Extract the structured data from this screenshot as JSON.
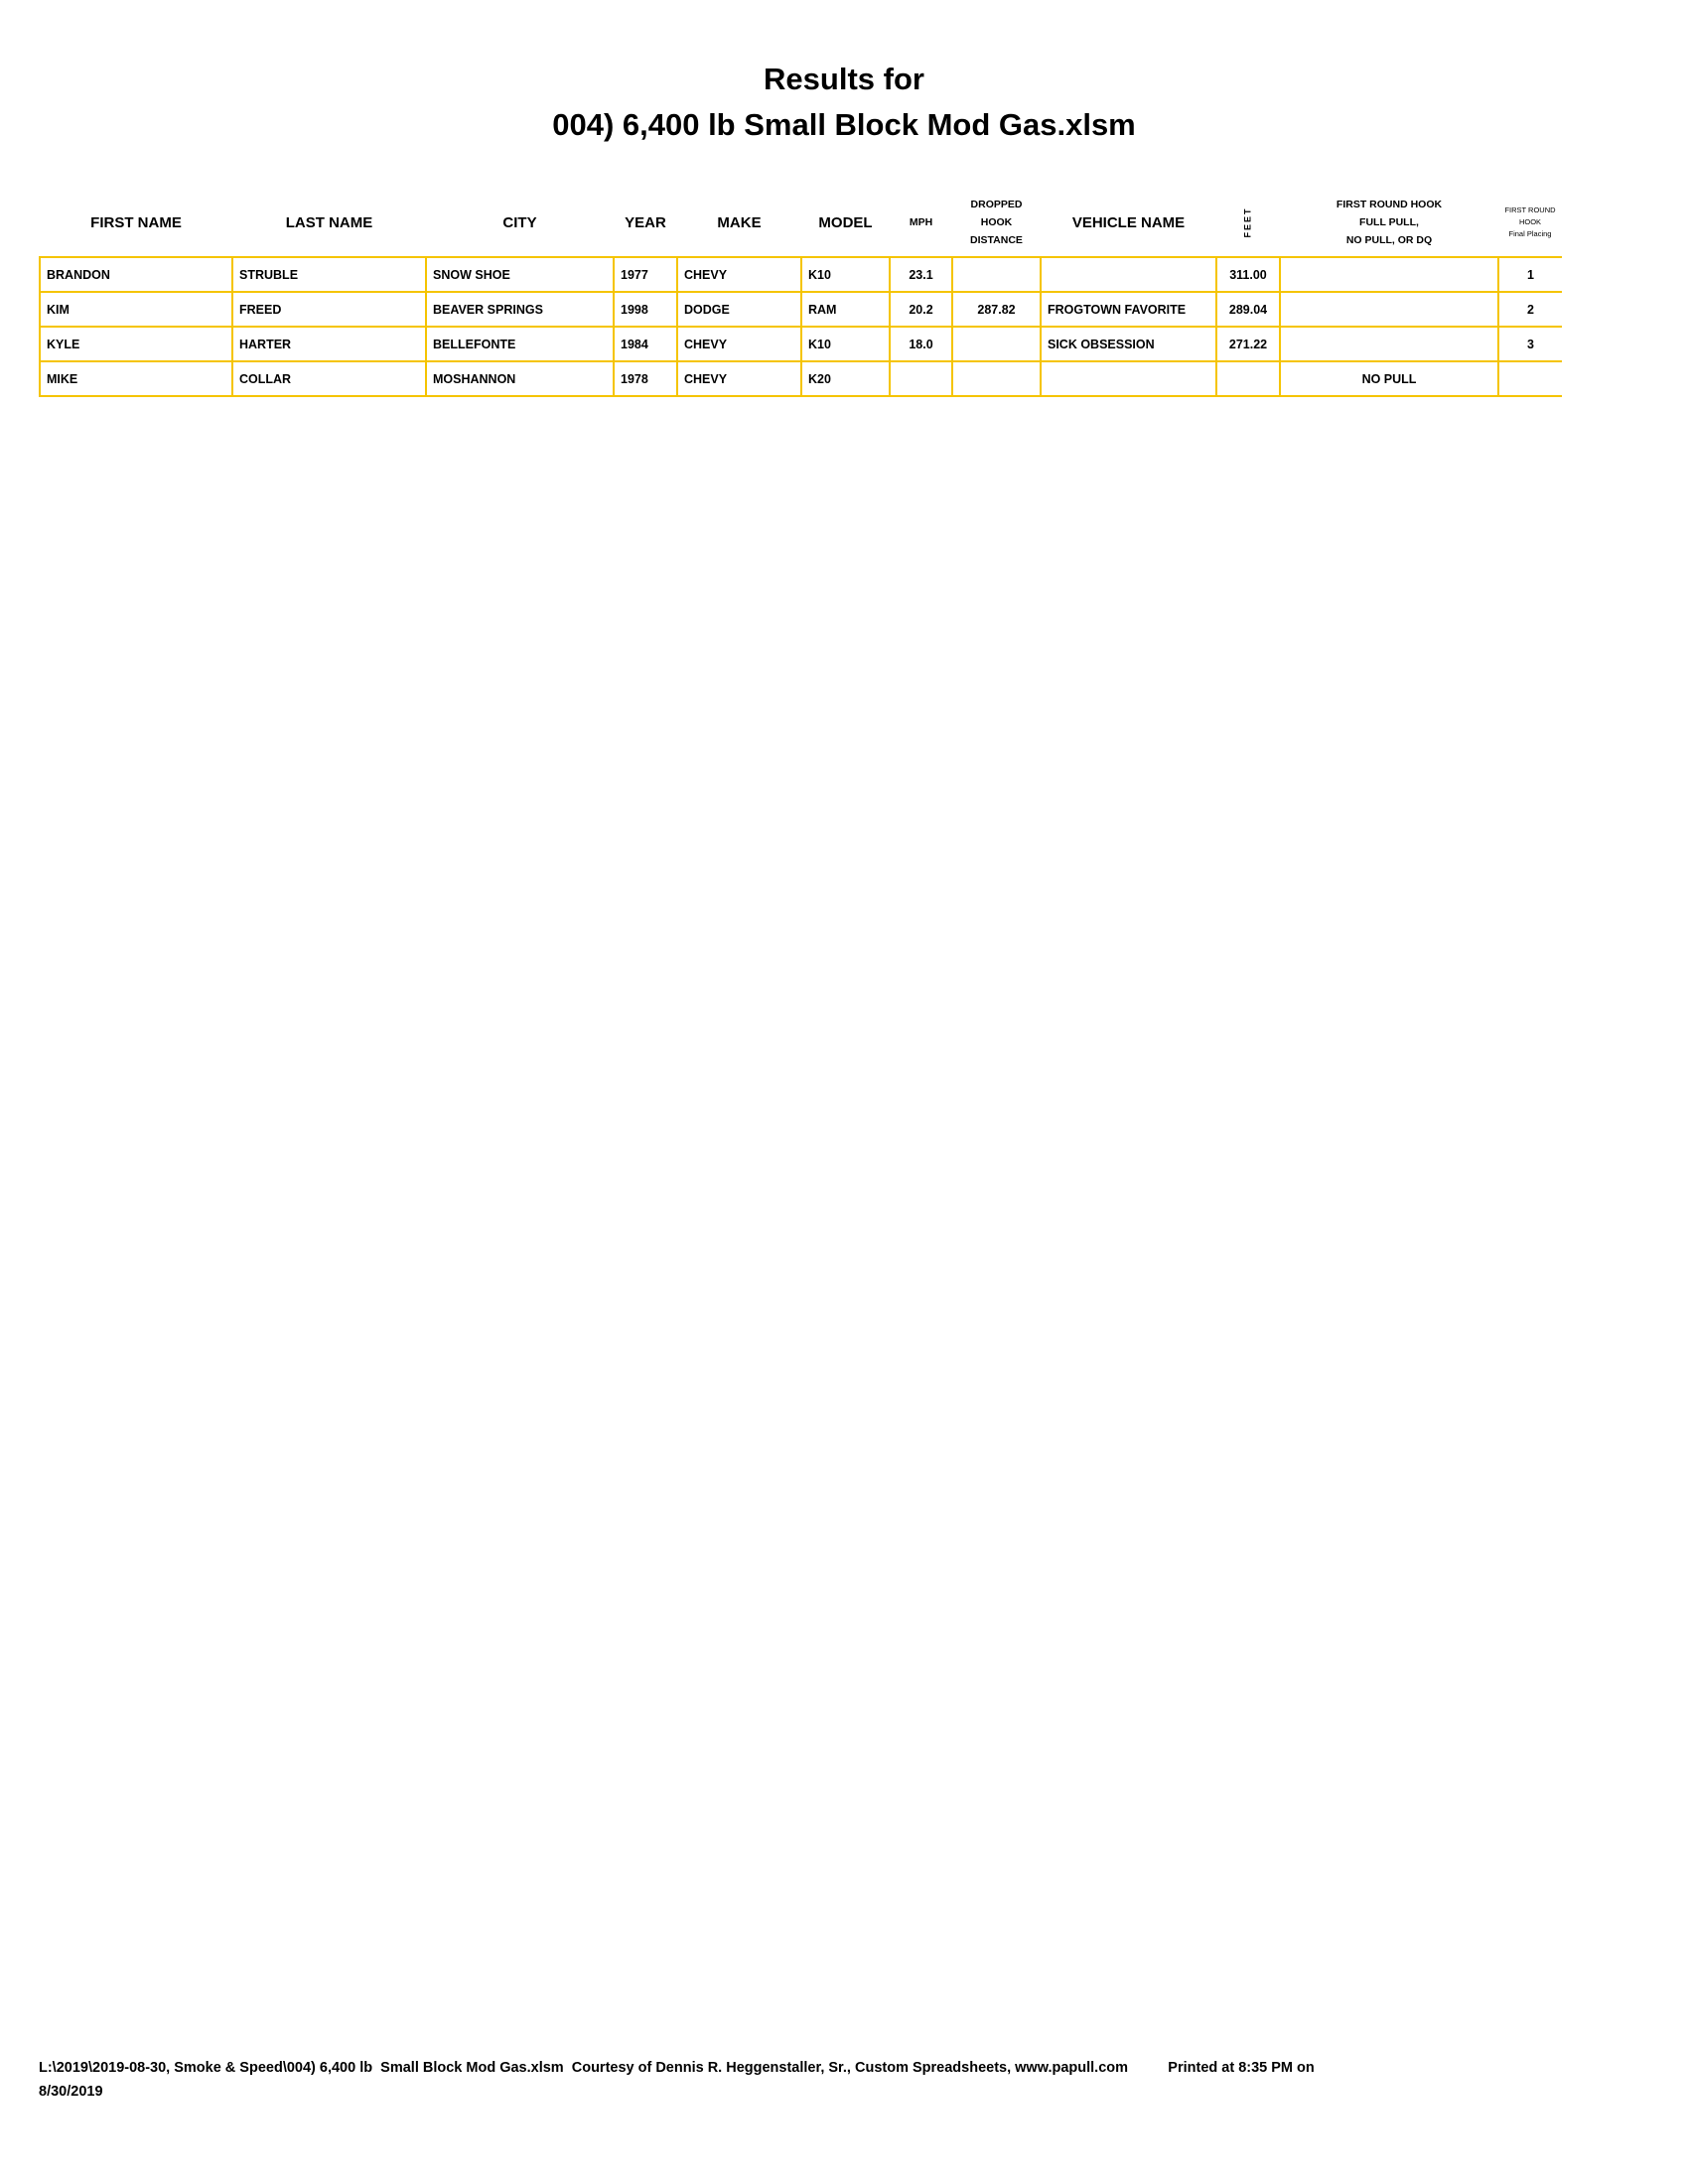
{
  "title_line1": "Results for",
  "title_line2": "004) 6,400 lb  Small Block Mod Gas.xlsm",
  "columns": [
    "FIRST NAME",
    "LAST NAME",
    "CITY",
    "YEAR",
    "MAKE",
    "MODEL",
    "MPH",
    "DROPPED HOOK DISTANCE",
    "VEHICLE NAME",
    "FEET",
    "FIRST ROUND HOOK FULL PULL, NO PULL, OR DQ",
    "FIRST ROUND HOOK Final Placing"
  ],
  "header": {
    "dropped": [
      "DROPPED",
      "HOOK",
      "DISTANCE"
    ],
    "first_round": [
      "FIRST ROUND HOOK",
      "FULL PULL,",
      "NO PULL, OR DQ"
    ],
    "placing": [
      "FIRST ROUND",
      "HOOK",
      "Final Placing"
    ]
  },
  "rows": [
    [
      "BRANDON",
      "STRUBLE",
      "SNOW SHOE",
      "1977",
      "CHEVY",
      "K10",
      "23.1",
      "",
      "",
      "311.00",
      "",
      "1"
    ],
    [
      "KIM",
      "FREED",
      "BEAVER SPRINGS",
      "1998",
      "DODGE",
      "RAM",
      "20.2",
      "287.82",
      "FROGTOWN FAVORITE",
      "289.04",
      "",
      "2"
    ],
    [
      "KYLE",
      "HARTER",
      "BELLEFONTE",
      "1984",
      "CHEVY",
      "K10",
      "18.0",
      "",
      "SICK OBSESSION",
      "271.22",
      "",
      "3"
    ],
    [
      "MIKE",
      "COLLAR",
      "MOSHANNON",
      "1978",
      "CHEVY",
      "K20",
      "",
      "",
      "",
      "",
      "NO PULL",
      ""
    ]
  ],
  "footer_line1": "L:\\2019\\2019-08-30, Smoke & Speed\\004) 6,400 lb  Small Block Mod Gas.xlsm  Courtesy of Dennis R. Heggenstaller, Sr., Custom Spreadsheets, www.papull.com          Printed at 8:35 PM on",
  "footer_line2": "8/30/2019",
  "colors": {
    "grid": "#F5C400"
  }
}
